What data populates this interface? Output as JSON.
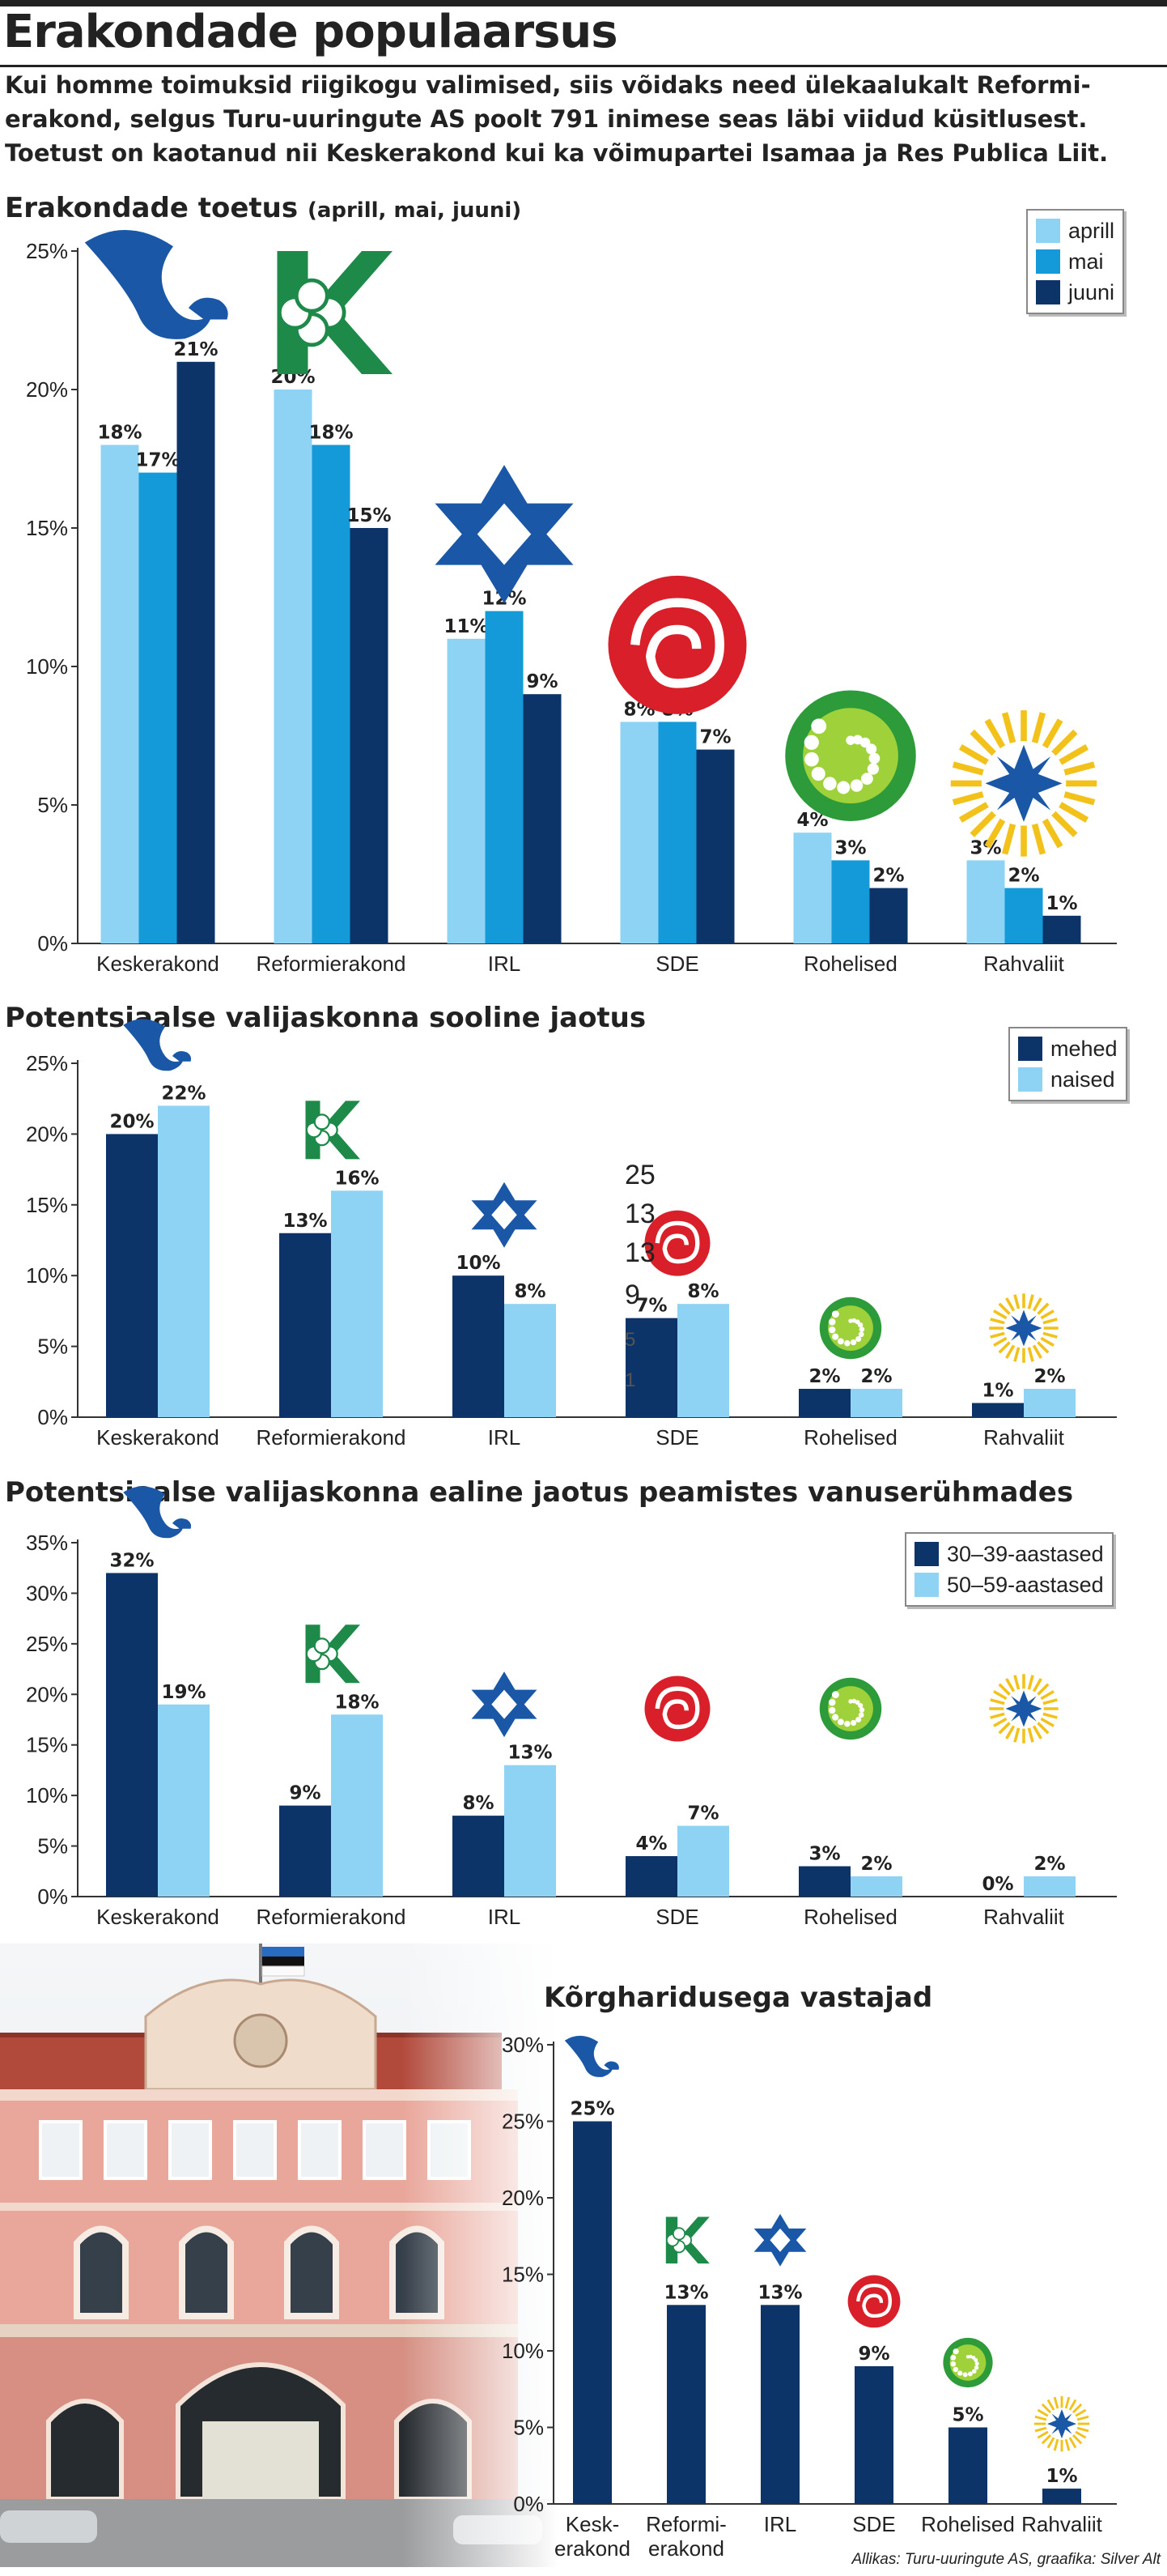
{
  "title": "Erakondade populaarsus",
  "lede": [
    "Kui homme toimuksid riigikogu valimised, siis võidaks need ülekaalukalt Reformi-",
    "erakond, selgus Turu-uuringute AS poolt 791 inimese seas läbi viidud küsitlusest.",
    "Toetust on kaotanud nii Keskerakond kui ka võimupartei Isamaa ja Res Publica Liit."
  ],
  "source": "Allikas: Turu-uuringute AS, graafika: Silver Alt",
  "colors": {
    "light": "#8fd3f4",
    "mid": "#149ad8",
    "dark": "#0c3468",
    "green": "#1e8a4a"
  },
  "icons": [
    "keskerakond-squirrel-logo",
    "reformierakond-clover-k-logo",
    "irl-star-logo",
    "sde-rose-logo",
    "rohelised-circle-logo",
    "rahvaliit-sun-logo"
  ],
  "chart_data": [
    {
      "type": "bar",
      "title": "Erakondade toetus",
      "subtitle": "(aprill, mai, juuni)",
      "categories": [
        "Keskerakond",
        "Reformierakond",
        "IRL",
        "SDE",
        "Rohelised",
        "Rahvaliit"
      ],
      "series": [
        {
          "name": "aprill",
          "values": [
            18,
            20,
            11,
            8,
            4,
            3
          ],
          "color": "#8fd3f4"
        },
        {
          "name": "mai",
          "values": [
            17,
            18,
            12,
            8,
            3,
            2
          ],
          "color": "#149ad8"
        },
        {
          "name": "juuni",
          "values": [
            21,
            15,
            9,
            7,
            2,
            1
          ],
          "color": "#0c3468"
        }
      ],
      "yticks": [
        "0%",
        "5%",
        "10%",
        "15%",
        "20%",
        "25%"
      ],
      "ylim": [
        0,
        25
      ],
      "value_suffix": "%",
      "legend": "top-right"
    },
    {
      "type": "bar",
      "title": "Potentsiaalse valijaskonna sooline jaotus",
      "categories": [
        "Keskerakond",
        "Reformierakond",
        "IRL",
        "SDE",
        "Rohelised",
        "Rahvaliit"
      ],
      "series": [
        {
          "name": "mehed",
          "values": [
            20,
            13,
            10,
            7,
            2,
            1
          ],
          "color": "#0c3468"
        },
        {
          "name": "naised",
          "values": [
            22,
            16,
            8,
            8,
            2,
            2
          ],
          "color": "#8fd3f4"
        }
      ],
      "yticks": [
        "0%",
        "5%",
        "10%",
        "15%",
        "20%",
        "25%"
      ],
      "ylim": [
        0,
        25
      ],
      "value_suffix": "%",
      "legend": "top-right",
      "stray_text": [
        "25",
        "13",
        "13",
        "9",
        "5",
        "1"
      ]
    },
    {
      "type": "bar",
      "title": "Potentsiaalse valijaskonna ealine jaotus peamistes vanuserühmades",
      "categories": [
        "Keskerakond",
        "Reformierakond",
        "IRL",
        "SDE",
        "Rohelised",
        "Rahvaliit"
      ],
      "series": [
        {
          "name": "30–39-aastased",
          "values": [
            32,
            9,
            8,
            4,
            3,
            0
          ],
          "color": "#0c3468"
        },
        {
          "name": "50–59-aastased",
          "values": [
            19,
            18,
            13,
            7,
            2,
            2
          ],
          "color": "#8fd3f4"
        }
      ],
      "yticks": [
        "0%",
        "5%",
        "10%",
        "15%",
        "20%",
        "25%",
        "30%",
        "35%"
      ],
      "ylim": [
        0,
        35
      ],
      "value_suffix": "%",
      "legend": "top-right"
    },
    {
      "type": "bar",
      "title": "Kõrgharidusega vastajad",
      "categories": [
        [
          "Kesk-",
          "erakond"
        ],
        [
          "Reformi-",
          "erakond"
        ],
        [
          "IRL"
        ],
        [
          "SDE"
        ],
        [
          "Rohelised"
        ],
        [
          "Rahvaliit"
        ]
      ],
      "series": [
        {
          "values": [
            25,
            13,
            13,
            9,
            5,
            1
          ],
          "color": "#0c3468"
        }
      ],
      "yticks": [
        "0%",
        "5%",
        "10%",
        "15%",
        "20%",
        "25%",
        "30%"
      ],
      "ylim": [
        0,
        30
      ],
      "value_suffix": "%"
    }
  ]
}
